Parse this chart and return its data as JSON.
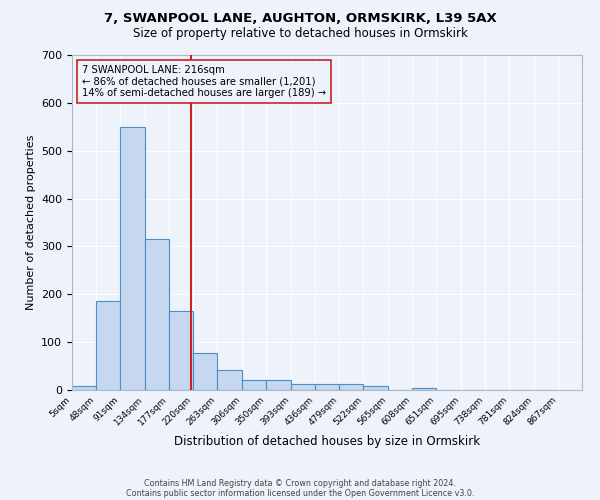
{
  "title1": "7, SWANPOOL LANE, AUGHTON, ORMSKIRK, L39 5AX",
  "title2": "Size of property relative to detached houses in Ormskirk",
  "xlabel": "Distribution of detached houses by size in Ormskirk",
  "ylabel": "Number of detached properties",
  "bin_labels": [
    "5sqm",
    "48sqm",
    "91sqm",
    "134sqm",
    "177sqm",
    "220sqm",
    "263sqm",
    "306sqm",
    "350sqm",
    "393sqm",
    "436sqm",
    "479sqm",
    "522sqm",
    "565sqm",
    "608sqm",
    "651sqm",
    "695sqm",
    "738sqm",
    "781sqm",
    "824sqm",
    "867sqm"
  ],
  "bin_edges": [
    5,
    48,
    91,
    134,
    177,
    220,
    263,
    306,
    350,
    393,
    436,
    479,
    522,
    565,
    608,
    651,
    695,
    738,
    781,
    824,
    867
  ],
  "bar_heights": [
    8,
    185,
    550,
    315,
    165,
    78,
    42,
    20,
    20,
    12,
    13,
    13,
    8,
    0,
    5,
    0,
    0,
    0,
    0,
    0
  ],
  "bar_color": "#c5d8f0",
  "bar_edge_color": "#4a90c4",
  "property_value": 216,
  "red_line_color": "#cc2222",
  "annotation_line1": "7 SWANPOOL LANE: 216sqm",
  "annotation_line2": "← 86% of detached houses are smaller (1,201)",
  "annotation_line3": "14% of semi-detached houses are larger (189) →",
  "annotation_box_edge": "#cc2222",
  "ylim": [
    0,
    700
  ],
  "footnote1": "Contains HM Land Registry data © Crown copyright and database right 2024.",
  "footnote2": "Contains public sector information licensed under the Open Government Licence v3.0.",
  "bg_color": "#eef2fa",
  "grid_color": "#ffffff"
}
